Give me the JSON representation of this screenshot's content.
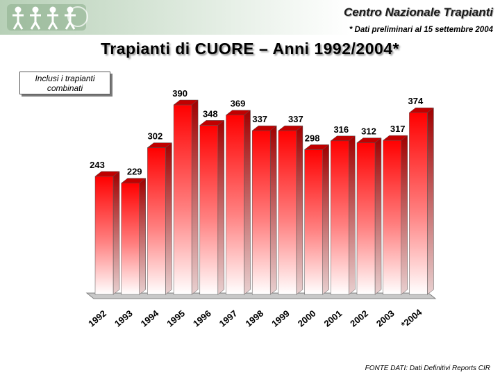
{
  "header": {
    "org_name": "Centro Nazionale Trapianti",
    "prelim_note": "* Dati preliminari al 15 settembre 2004"
  },
  "title": "Trapianti di CUORE – Anni 1992/2004*",
  "note_box": "Inclusi i trapianti combinati",
  "source": "FONTE DATI: Dati Definitivi Reports CIR",
  "colors": {
    "bar_top": "#ff0000",
    "bar_bottom": "#ffffff",
    "header_band": "#b7d0b7"
  },
  "chart_data": {
    "type": "bar",
    "categories": [
      "1992",
      "1993",
      "1994",
      "1995",
      "1996",
      "1997",
      "1998",
      "1999",
      "2000",
      "2001",
      "2002",
      "2003",
      "*2004"
    ],
    "values": [
      243,
      229,
      302,
      390,
      348,
      369,
      337,
      337,
      298,
      316,
      312,
      317,
      374
    ],
    "title": "Trapianti di CUORE – Anni 1992/2004*",
    "xlabel": "",
    "ylabel": "",
    "ylim": [
      0,
      400
    ],
    "grid": false,
    "legend": "none",
    "data_labels": true
  }
}
